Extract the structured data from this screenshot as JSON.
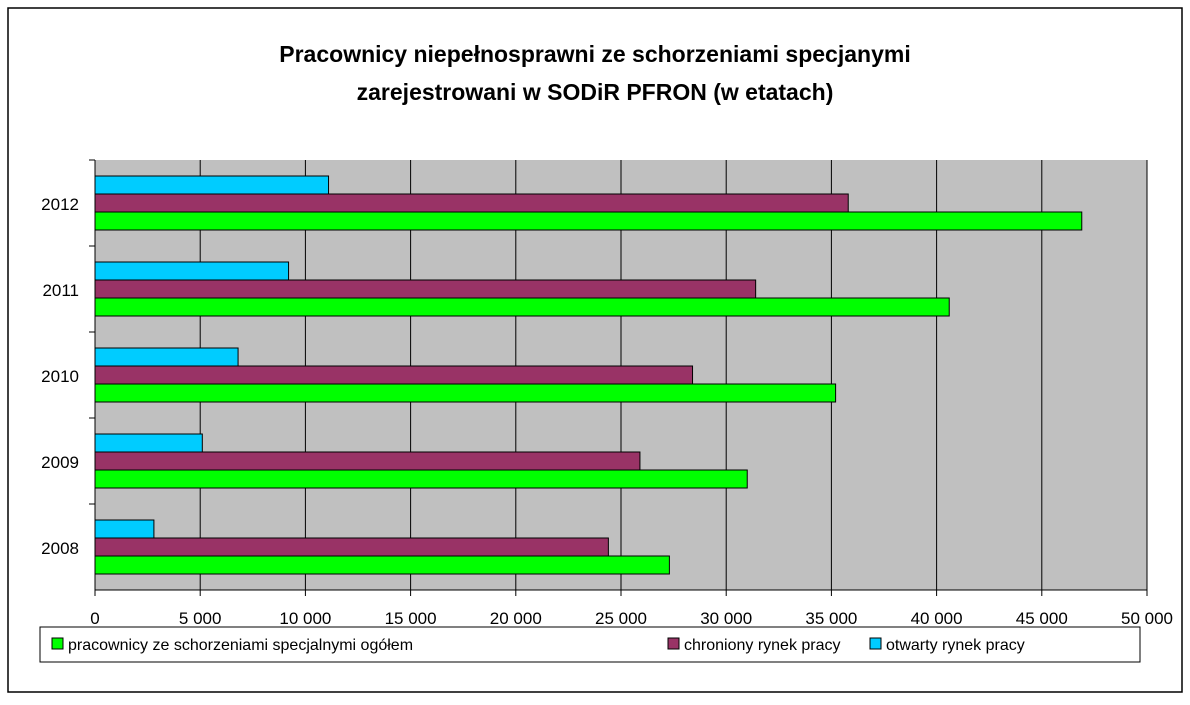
{
  "chart_data": {
    "type": "hbar",
    "title": [
      "Pracownicy niepełnosprawni ze schorzeniami specjanymi",
      "zarejestrowani w SODiR PFRON (w etatach)"
    ],
    "categories": [
      "2008",
      "2009",
      "2010",
      "2011",
      "2012"
    ],
    "series": [
      {
        "name": "pracownicy ze schorzeniami specjalnymi ogółem",
        "color": "#00ff00",
        "values": [
          27300,
          31000,
          35200,
          40600,
          46900
        ]
      },
      {
        "name": "chroniony rynek pracy",
        "color": "#993366",
        "values": [
          24400,
          25900,
          28400,
          31400,
          35800
        ]
      },
      {
        "name": "otwarty rynek pracy",
        "color": "#00ccff",
        "values": [
          2800,
          5100,
          6800,
          9200,
          11100
        ]
      }
    ],
    "xlim": [
      0,
      50000
    ],
    "xticks": [
      0,
      {
        "value": 5000,
        "label": "5 000"
      },
      {
        "value": 10000,
        "label": "10 000"
      },
      {
        "value": 15000,
        "label": "15 000"
      },
      {
        "value": 20000,
        "label": "20 000"
      },
      {
        "value": 25000,
        "label": "25 000"
      },
      {
        "value": 30000,
        "label": "30 000"
      },
      {
        "value": 35000,
        "label": "35 000"
      },
      {
        "value": 40000,
        "label": "40 000"
      },
      {
        "value": 45000,
        "label": "45 000"
      },
      {
        "value": 50000,
        "label": {
          "value": 50000,
          "label": "50 000"
        }
      }
    ],
    "grid": true,
    "legend": "bottom"
  }
}
